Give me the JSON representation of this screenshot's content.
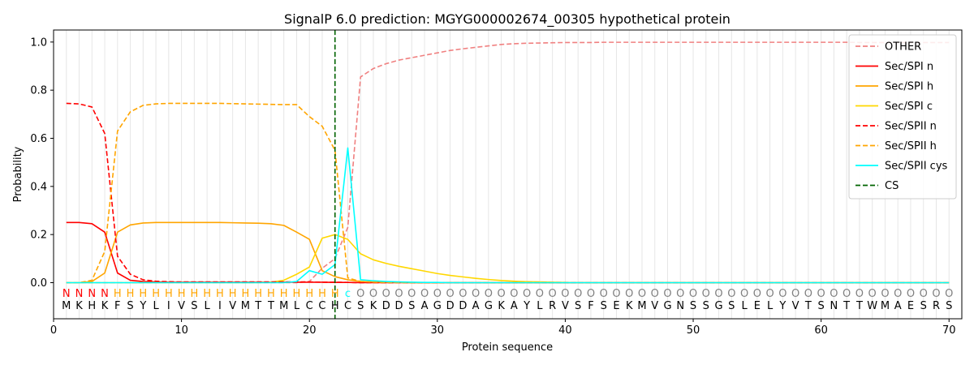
{
  "chart_data": {
    "type": "line",
    "title": "SignalP 6.0 prediction: MGYG000002674_00305 hypothetical protein",
    "xlabel": "Protein sequence",
    "ylabel": "Probability",
    "xlim": [
      0,
      71
    ],
    "ylim": [
      -0.15,
      1.05
    ],
    "xticks": [
      0,
      10,
      20,
      30,
      40,
      50,
      60,
      70
    ],
    "yticks": [
      0.0,
      0.2,
      0.4,
      0.6,
      0.8,
      1.0
    ],
    "ytick_labels": [
      "0.0",
      "0.2",
      "0.4",
      "0.6",
      "0.8",
      "1.0"
    ],
    "legend_position": "top-right",
    "cs_position": 22,
    "sequence": [
      "M",
      "K",
      "H",
      "K",
      "F",
      "S",
      "Y",
      "L",
      "I",
      "V",
      "S",
      "L",
      "I",
      "V",
      "M",
      "T",
      "T",
      "M",
      "L",
      "C",
      "C",
      "H",
      "C",
      "S",
      "K",
      "D",
      "D",
      "S",
      "A",
      "G",
      "D",
      "D",
      "A",
      "G",
      "K",
      "A",
      "Y",
      "L",
      "R",
      "V",
      "S",
      "F",
      "S",
      "E",
      "K",
      "M",
      "V",
      "G",
      "N",
      "S",
      "S",
      "G",
      "S",
      "L",
      "E",
      "L",
      "Y",
      "V",
      "T",
      "S",
      "N",
      "T",
      "T",
      "W",
      "M",
      "A",
      "E",
      "S",
      "R",
      "S"
    ],
    "labels": [
      "N",
      "N",
      "N",
      "N",
      "H",
      "H",
      "H",
      "H",
      "H",
      "H",
      "H",
      "H",
      "H",
      "H",
      "H",
      "H",
      "H",
      "H",
      "H",
      "H",
      "H",
      "H",
      "c",
      "O",
      "O",
      "O",
      "O",
      "O",
      "O",
      "O",
      "O",
      "O",
      "O",
      "O",
      "O",
      "O",
      "O",
      "O",
      "O",
      "O",
      "O",
      "O",
      "O",
      "O",
      "O",
      "O",
      "O",
      "O",
      "O",
      "O",
      "O",
      "O",
      "O",
      "O",
      "O",
      "O",
      "O",
      "O",
      "O",
      "O",
      "O",
      "O",
      "O",
      "O",
      "O",
      "O",
      "O",
      "O",
      "O",
      "O"
    ],
    "label_colors": {
      "N": "#ff0000",
      "H": "#ffa500",
      "c": "#00ffff",
      "O": "#808080"
    },
    "series": [
      {
        "name": "OTHER",
        "color": "#f08080",
        "dash": true,
        "values": [
          0,
          0,
          0,
          0,
          0,
          0,
          0,
          0,
          0,
          0,
          0,
          0,
          0,
          0,
          0,
          0,
          0,
          0,
          0,
          0.005,
          0.06,
          0.1,
          0.23,
          0.855,
          0.89,
          0.91,
          0.925,
          0.935,
          0.945,
          0.955,
          0.965,
          0.972,
          0.978,
          0.984,
          0.99,
          0.993,
          0.995,
          0.996,
          0.997,
          0.998,
          0.998,
          0.998,
          0.999,
          0.999,
          0.999,
          0.999,
          0.999,
          0.999,
          0.999,
          0.999,
          0.999,
          0.999,
          0.999,
          0.999,
          0.999,
          0.999,
          0.999,
          0.999,
          0.999,
          0.999,
          0.999,
          0.999,
          0.998,
          0.998,
          0.998,
          0.998,
          0.998,
          0.998,
          0.998,
          0.998
        ]
      },
      {
        "name": "Sec/SPI n",
        "color": "#ff0000",
        "dash": false,
        "values": [
          0.25,
          0.25,
          0.245,
          0.21,
          0.04,
          0.01,
          0.005,
          0.003,
          0.002,
          0.002,
          0.002,
          0.002,
          0.002,
          0.002,
          0.002,
          0.002,
          0.002,
          0.002,
          0.002,
          0.002,
          0.002,
          0.001,
          0.001,
          0,
          0,
          0,
          0,
          0,
          0,
          0,
          0,
          0,
          0,
          0,
          0,
          0,
          0,
          0,
          0,
          0,
          0,
          0,
          0,
          0,
          0,
          0,
          0,
          0,
          0,
          0,
          0,
          0,
          0,
          0,
          0,
          0,
          0,
          0,
          0,
          0,
          0,
          0,
          0,
          0,
          0,
          0,
          0,
          0,
          0,
          0
        ]
      },
      {
        "name": "Sec/SPI h",
        "color": "#ffa500",
        "dash": false,
        "values": [
          0,
          0,
          0.005,
          0.04,
          0.21,
          0.24,
          0.248,
          0.25,
          0.25,
          0.25,
          0.25,
          0.25,
          0.25,
          0.249,
          0.248,
          0.247,
          0.245,
          0.238,
          0.21,
          0.18,
          0.05,
          0.025,
          0.012,
          0.005,
          0.003,
          0.002,
          0.001,
          0,
          0,
          0,
          0,
          0,
          0,
          0,
          0,
          0,
          0,
          0,
          0,
          0,
          0,
          0,
          0,
          0,
          0,
          0,
          0,
          0,
          0,
          0,
          0,
          0,
          0,
          0,
          0,
          0,
          0,
          0,
          0,
          0,
          0,
          0,
          0,
          0,
          0,
          0,
          0,
          0,
          0,
          0
        ]
      },
      {
        "name": "Sec/SPI c",
        "color": "#ffd700",
        "dash": false,
        "values": [
          0,
          0,
          0,
          0,
          0,
          0,
          0,
          0,
          0,
          0,
          0,
          0,
          0,
          0,
          0,
          0,
          0.002,
          0.01,
          0.035,
          0.065,
          0.185,
          0.2,
          0.18,
          0.12,
          0.095,
          0.08,
          0.068,
          0.058,
          0.048,
          0.038,
          0.03,
          0.024,
          0.018,
          0.013,
          0.009,
          0.006,
          0.004,
          0.003,
          0.002,
          0.001,
          0,
          0,
          0,
          0,
          0,
          0,
          0,
          0,
          0,
          0,
          0,
          0,
          0,
          0,
          0,
          0,
          0,
          0,
          0,
          0,
          0,
          0,
          0,
          0,
          0,
          0,
          0,
          0,
          0,
          0
        ]
      },
      {
        "name": "Sec/SPII n",
        "color": "#ff0000",
        "dash": true,
        "values": [
          0.745,
          0.743,
          0.73,
          0.62,
          0.11,
          0.035,
          0.012,
          0.006,
          0.004,
          0.003,
          0.003,
          0.003,
          0.003,
          0.003,
          0.003,
          0.003,
          0.003,
          0.003,
          0.003,
          0.003,
          0.002,
          0.002,
          0.001,
          0,
          0,
          0,
          0,
          0,
          0,
          0,
          0,
          0,
          0,
          0,
          0,
          0,
          0,
          0,
          0,
          0,
          0,
          0,
          0,
          0,
          0,
          0,
          0,
          0,
          0,
          0,
          0,
          0,
          0,
          0,
          0,
          0,
          0,
          0,
          0,
          0,
          0,
          0,
          0,
          0,
          0,
          0,
          0,
          0,
          0,
          0
        ]
      },
      {
        "name": "Sec/SPII h",
        "color": "#ffa500",
        "dash": true,
        "values": [
          0,
          0,
          0.01,
          0.13,
          0.63,
          0.71,
          0.737,
          0.743,
          0.745,
          0.745,
          0.745,
          0.745,
          0.745,
          0.744,
          0.743,
          0.742,
          0.741,
          0.74,
          0.74,
          0.69,
          0.65,
          0.55,
          0.02,
          0.005,
          0.002,
          0.001,
          0,
          0,
          0,
          0,
          0,
          0,
          0,
          0,
          0,
          0,
          0,
          0,
          0,
          0,
          0,
          0,
          0,
          0,
          0,
          0,
          0,
          0,
          0,
          0,
          0,
          0,
          0,
          0,
          0,
          0,
          0,
          0,
          0,
          0,
          0,
          0,
          0,
          0,
          0,
          0,
          0,
          0,
          0,
          0
        ]
      },
      {
        "name": "Sec/SPII cys",
        "color": "#00ffff",
        "dash": false,
        "values": [
          0,
          0,
          0,
          0,
          0,
          0,
          0,
          0,
          0,
          0,
          0,
          0,
          0,
          0,
          0,
          0,
          0,
          0,
          0.005,
          0.05,
          0.035,
          0.075,
          0.56,
          0.012,
          0.008,
          0.005,
          0.003,
          0.002,
          0.001,
          0.001,
          0,
          0,
          0,
          0,
          0,
          0,
          0,
          0,
          0,
          0,
          0,
          0,
          0,
          0,
          0,
          0,
          0,
          0,
          0,
          0,
          0,
          0,
          0,
          0,
          0,
          0,
          0,
          0,
          0,
          0,
          0,
          0,
          0,
          0,
          0,
          0,
          0,
          0,
          0,
          0
        ]
      }
    ],
    "legend": [
      {
        "name": "OTHER",
        "color": "#f08080",
        "dash": true
      },
      {
        "name": "Sec/SPI n",
        "color": "#ff0000",
        "dash": false
      },
      {
        "name": "Sec/SPI h",
        "color": "#ffa500",
        "dash": false
      },
      {
        "name": "Sec/SPI c",
        "color": "#ffd700",
        "dash": false
      },
      {
        "name": "Sec/SPII n",
        "color": "#ff0000",
        "dash": true
      },
      {
        "name": "Sec/SPII h",
        "color": "#ffa500",
        "dash": true
      },
      {
        "name": "Sec/SPII cys",
        "color": "#00ffff",
        "dash": false
      },
      {
        "name": "CS",
        "color": "#006400",
        "dash": true
      }
    ]
  }
}
